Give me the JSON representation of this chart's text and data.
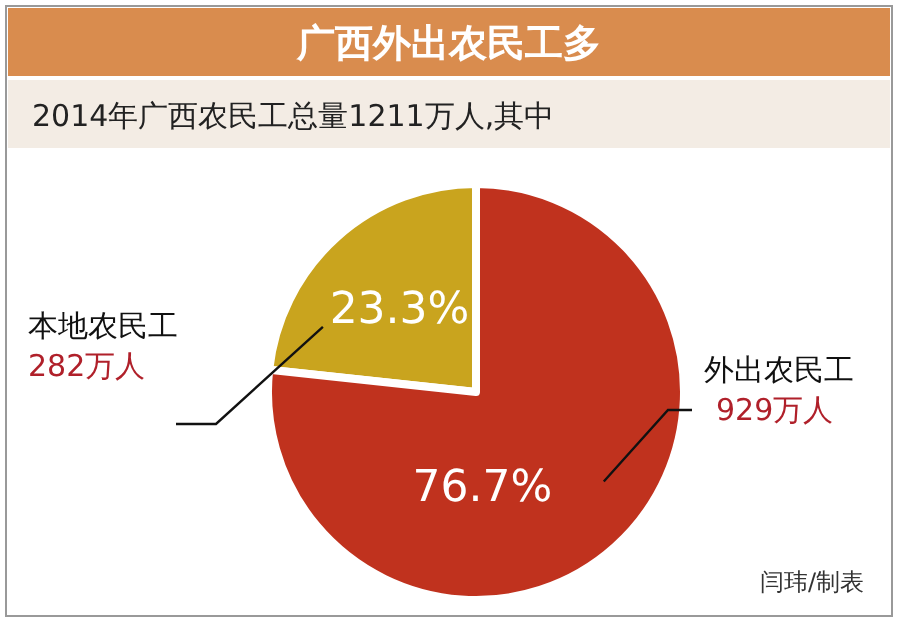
{
  "chart_data": {
    "type": "pie",
    "title": "广西外出农民工多",
    "subtitle": "2014年广西农民工总量1211万人,其中",
    "categories": [
      "本地农民工",
      "外出农民工"
    ],
    "values": [
      23.3,
      76.7
    ],
    "value_labels": [
      "23.3%",
      "76.7%"
    ],
    "colors": [
      "#c9a41e",
      "#c0321e"
    ],
    "annotations": [
      "282万人",
      "929万人",
      "闫玮/制表"
    ]
  }
}
